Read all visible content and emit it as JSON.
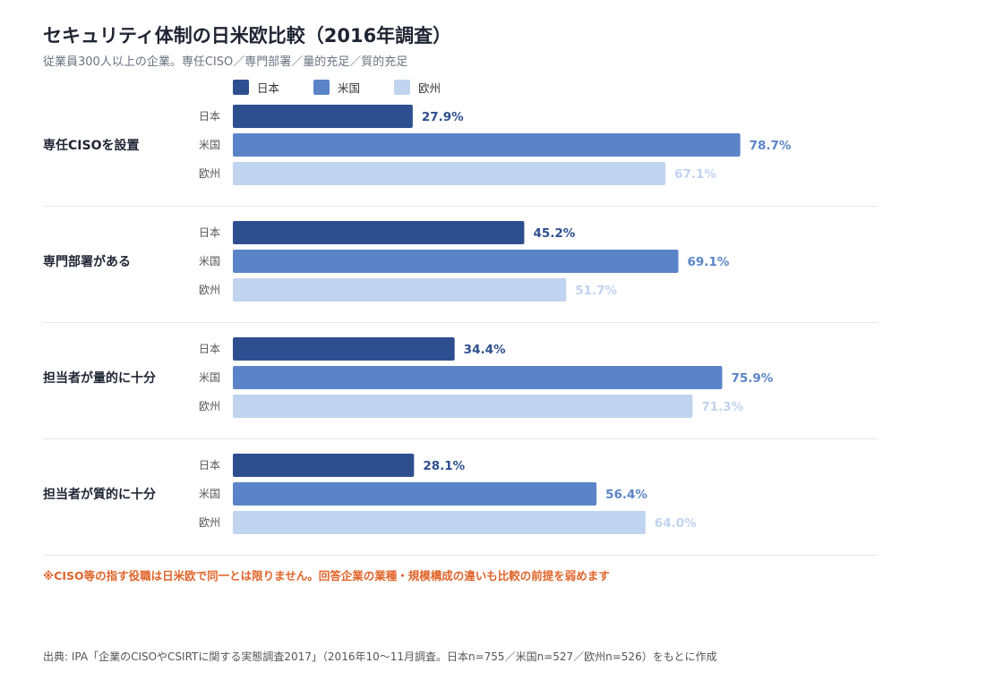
{
  "title": "セキュリティ体制の日米欧比較（2016年調査）",
  "subtitle": "従業員300人以上の企業。専任CISO／専門部署／量的充足／質的充足",
  "note": "※CISO等の指す役職は日米欧で同一とは限りません。回答企業の業種・規模構成の違いも比較の前提を弱めます",
  "source": "出典: IPA「企業のCISOやCSIRTに関する実態調査2017」（2016年10〜11月調査。日本n=755／米国n=527／欧州n=526）をもとに作成",
  "colors": {
    "japan": "#2e4f8f",
    "us": "#5b84c8",
    "europe": "#c0d3ef",
    "separator": "#e5e7eb",
    "note": "#e0642a"
  },
  "legend": [
    {
      "name": "日本",
      "color": "#2e4f8f"
    },
    {
      "name": "米国",
      "color": "#5b84c8"
    },
    {
      "name": "欧州",
      "color": "#c0d3ef"
    }
  ],
  "chart_data": {
    "type": "bar",
    "orientation": "horizontal",
    "xlim": [
      0,
      100
    ],
    "unit": "%",
    "legend_position": "top",
    "grid": false,
    "categories": [
      "専任CISOを設置",
      "専門部署がある",
      "担当者が量的に十分",
      "担当者が質的に十分"
    ],
    "series": [
      {
        "name": "日本",
        "values": [
          27.9,
          45.2,
          34.4,
          28.1
        ],
        "color": "#2e4f8f"
      },
      {
        "name": "米国",
        "values": [
          78.7,
          69.1,
          75.9,
          56.4
        ],
        "color": "#5b84c8"
      },
      {
        "name": "欧州",
        "values": [
          67.1,
          51.7,
          71.3,
          64.0
        ],
        "color": "#c0d3ef"
      }
    ]
  }
}
